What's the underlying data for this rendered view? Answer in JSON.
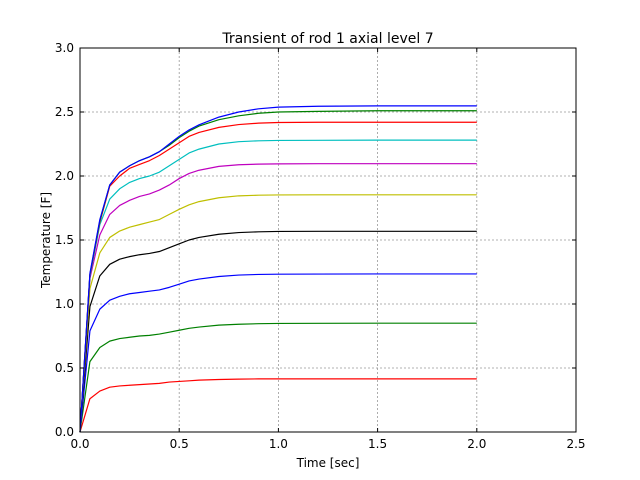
{
  "chart_data": {
    "type": "line",
    "title": "Transient of rod 1 axial level 7",
    "xlabel": "Time [sec]",
    "ylabel": "Temperature [F]",
    "xlim": [
      0.0,
      2.5
    ],
    "ylim": [
      0.0,
      3.0
    ],
    "xticks": [
      0.0,
      0.5,
      1.0,
      1.5,
      2.0,
      2.5
    ],
    "xtick_labels": [
      "0.0",
      "0.5",
      "1.0",
      "1.5",
      "2.0",
      "2.5"
    ],
    "yticks": [
      0.0,
      0.5,
      1.0,
      1.5,
      2.0,
      2.5,
      3.0
    ],
    "ytick_labels": [
      "0.0",
      "0.5",
      "1.0",
      "1.5",
      "2.0",
      "2.5",
      "3.0"
    ],
    "grid": true,
    "legend": "none",
    "x": [
      0.0,
      0.05,
      0.1,
      0.15,
      0.2,
      0.25,
      0.3,
      0.35,
      0.4,
      0.45,
      0.5,
      0.55,
      0.6,
      0.7,
      0.8,
      0.9,
      1.0,
      1.2,
      1.5,
      2.0
    ],
    "series": [
      {
        "color": "#ff0000",
        "values": [
          0.0,
          0.26,
          0.32,
          0.35,
          0.36,
          0.365,
          0.37,
          0.375,
          0.38,
          0.39,
          0.395,
          0.4,
          0.405,
          0.41,
          0.413,
          0.415,
          0.415,
          0.415,
          0.415,
          0.415
        ]
      },
      {
        "color": "#008000",
        "values": [
          0.0,
          0.55,
          0.66,
          0.71,
          0.73,
          0.74,
          0.75,
          0.755,
          0.765,
          0.78,
          0.795,
          0.81,
          0.82,
          0.835,
          0.842,
          0.846,
          0.848,
          0.849,
          0.85,
          0.85
        ]
      },
      {
        "color": "#0000ff",
        "values": [
          0.0,
          0.79,
          0.96,
          1.03,
          1.06,
          1.08,
          1.09,
          1.1,
          1.11,
          1.13,
          1.155,
          1.18,
          1.195,
          1.215,
          1.226,
          1.231,
          1.233,
          1.234,
          1.235,
          1.235
        ]
      },
      {
        "color": "#000000",
        "values": [
          0.0,
          0.98,
          1.22,
          1.31,
          1.35,
          1.37,
          1.385,
          1.395,
          1.41,
          1.44,
          1.47,
          1.5,
          1.52,
          1.545,
          1.558,
          1.564,
          1.567,
          1.568,
          1.568,
          1.568
        ]
      },
      {
        "color": "#bfbf00",
        "values": [
          0.0,
          1.12,
          1.4,
          1.52,
          1.57,
          1.6,
          1.62,
          1.64,
          1.66,
          1.7,
          1.74,
          1.775,
          1.8,
          1.83,
          1.845,
          1.85,
          1.852,
          1.853,
          1.853,
          1.853
        ]
      },
      {
        "color": "#bf00bf",
        "values": [
          0.0,
          1.2,
          1.54,
          1.7,
          1.77,
          1.81,
          1.84,
          1.86,
          1.89,
          1.93,
          1.98,
          2.02,
          2.045,
          2.075,
          2.088,
          2.093,
          2.095,
          2.096,
          2.096,
          2.096
        ]
      },
      {
        "color": "#00bfbf",
        "values": [
          0.0,
          1.22,
          1.62,
          1.82,
          1.9,
          1.95,
          1.98,
          2.0,
          2.03,
          2.08,
          2.13,
          2.18,
          2.21,
          2.25,
          2.268,
          2.275,
          2.278,
          2.279,
          2.28,
          2.28
        ]
      },
      {
        "color": "#ff0000",
        "values": [
          0.0,
          1.23,
          1.64,
          1.92,
          2.0,
          2.06,
          2.09,
          2.12,
          2.16,
          2.21,
          2.26,
          2.31,
          2.34,
          2.38,
          2.402,
          2.413,
          2.418,
          2.42,
          2.42,
          2.42
        ]
      },
      {
        "color": "#008000",
        "values": [
          0.0,
          1.23,
          1.65,
          1.93,
          2.03,
          2.08,
          2.12,
          2.15,
          2.19,
          2.24,
          2.3,
          2.35,
          2.39,
          2.44,
          2.47,
          2.49,
          2.5,
          2.505,
          2.51,
          2.51
        ]
      },
      {
        "color": "#0000ff",
        "values": [
          0.0,
          1.24,
          1.66,
          1.93,
          2.03,
          2.08,
          2.12,
          2.15,
          2.19,
          2.25,
          2.31,
          2.36,
          2.4,
          2.46,
          2.5,
          2.525,
          2.538,
          2.545,
          2.548,
          2.548
        ]
      }
    ]
  }
}
